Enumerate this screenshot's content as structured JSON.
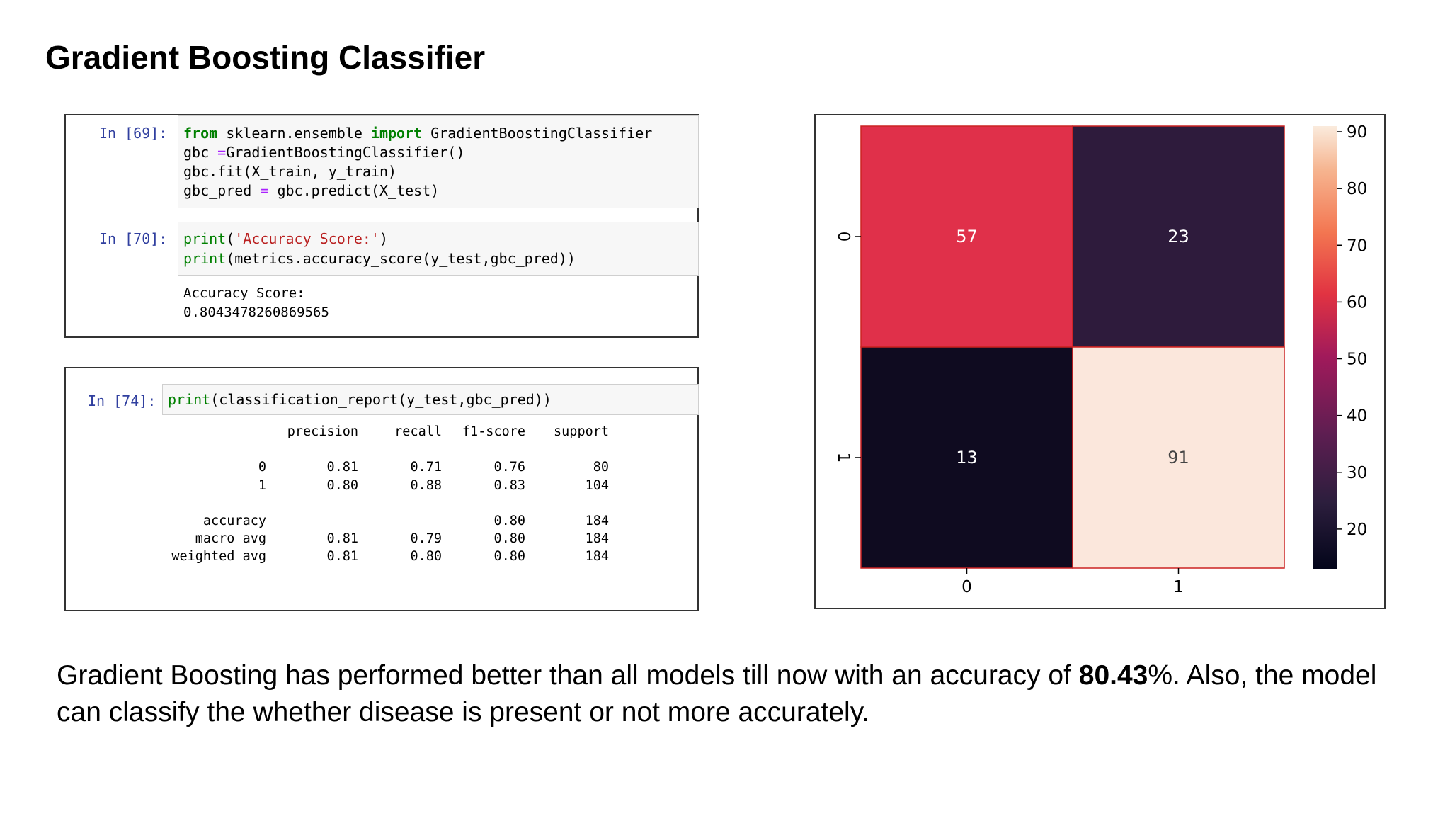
{
  "slide": {
    "title": "Gradient Boosting Classifier",
    "summary": {
      "before": "Gradient Boosting has performed better than all models till now with an accuracy of ",
      "bold": "80.43",
      "after": "%. Also, the model can classify the whether disease is present or not more accurately."
    }
  },
  "notebook": {
    "cell69": {
      "prompt": "In [69]:",
      "line1": {
        "kw1": "from",
        "mid": " sklearn.ensemble ",
        "kw2": "import",
        "rest": " GradientBoostingClassifier"
      },
      "line2": {
        "a": "gbc ",
        "op": "=",
        "b": "GradientBoostingClassifier()"
      },
      "line3": "gbc.fit(X_train, y_train)",
      "line4": {
        "a": "gbc_pred ",
        "op": "=",
        "b": " gbc.predict(X_test)"
      }
    },
    "cell70": {
      "prompt": "In [70]:",
      "line1": {
        "fn": "print",
        "p1": "(",
        "str": "'Accuracy Score:'",
        "p2": ")"
      },
      "line2": {
        "fn": "print",
        "rest": "(metrics.accuracy_score(y_test,gbc_pred))"
      },
      "output1": "Accuracy Score:",
      "output2": "0.8043478260869565"
    },
    "cell74": {
      "prompt": "In [74]:",
      "line": {
        "fn": "print",
        "rest": "(classification_report(y_test,gbc_pred))"
      },
      "headers": [
        "precision",
        "recall",
        "f1-score",
        "support"
      ],
      "rows": [
        {
          "label": "0",
          "precision": "0.81",
          "recall": "0.71",
          "f1": "0.76",
          "support": "80"
        },
        {
          "label": "1",
          "precision": "0.80",
          "recall": "0.88",
          "f1": "0.83",
          "support": "104"
        },
        {
          "label": "accuracy",
          "precision": "",
          "recall": "",
          "f1": "0.80",
          "support": "184"
        },
        {
          "label": "macro avg",
          "precision": "0.81",
          "recall": "0.79",
          "f1": "0.80",
          "support": "184"
        },
        {
          "label": "weighted avg",
          "precision": "0.81",
          "recall": "0.80",
          "f1": "0.80",
          "support": "184"
        }
      ]
    }
  },
  "chart_data": {
    "type": "heatmap",
    "x_categories": [
      "0",
      "1"
    ],
    "y_categories": [
      "0",
      "1"
    ],
    "values": [
      [
        57,
        23
      ],
      [
        13,
        91
      ]
    ],
    "colorbar": {
      "ticks": [
        20,
        30,
        40,
        50,
        60,
        70,
        80,
        90
      ],
      "range": [
        13,
        91
      ]
    },
    "colors": {
      "cell_0_0": "#e0304a",
      "cell_0_1": "#2e1b3c",
      "cell_1_0": "#0f0b20",
      "cell_1_1": "#fbe7dc",
      "text_on_dark": "#ffffff",
      "text_on_light": "#444444",
      "cell_border": "#cc2222"
    }
  }
}
